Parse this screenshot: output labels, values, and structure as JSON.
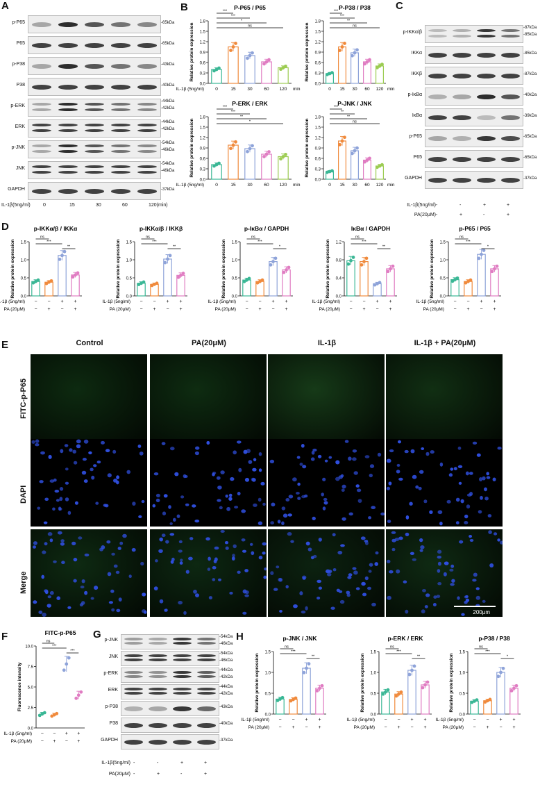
{
  "panels": {
    "A": "A",
    "B": "B",
    "C": "C",
    "D": "D",
    "E": "E",
    "F": "F",
    "G": "G",
    "H": "H"
  },
  "A": {
    "rows": [
      {
        "name": "p-P65",
        "kda": [
          "-65kDa"
        ]
      },
      {
        "name": "P65",
        "kda": [
          "-65kDa"
        ]
      },
      {
        "name": "p-P38",
        "kda": [
          "-43kDa"
        ]
      },
      {
        "name": "P38",
        "kda": [
          "-40kDa"
        ]
      },
      {
        "name": "p-ERK",
        "kda": [
          "-44kDa",
          "-42kDa"
        ]
      },
      {
        "name": "ERK",
        "kda": [
          "-44kDa",
          "-42kDa"
        ]
      },
      {
        "name": "p-JNK",
        "kda": [
          "-54kDa",
          "-46kDa"
        ]
      },
      {
        "name": "JNK",
        "kda": [
          "-54kDa",
          "-46kDa"
        ]
      },
      {
        "name": "GAPDH",
        "kda": [
          "-37kDa"
        ]
      }
    ],
    "treatment_label": "IL-1β(5ng/ml)",
    "times": [
      "0",
      "15",
      "30",
      "60",
      "120(min)"
    ]
  },
  "C": {
    "rows": [
      {
        "name": "p-IKKα/β",
        "kda": [
          "-87kDa",
          "-85kDa"
        ]
      },
      {
        "name": "IKKα",
        "kda": [
          "-85kDa"
        ]
      },
      {
        "name": "IKKβ",
        "kda": [
          "-87kDa"
        ]
      },
      {
        "name": "p-IκBα",
        "kda": [
          "-40kDa"
        ]
      },
      {
        "name": "IκBα",
        "kda": [
          "-39kDa"
        ]
      },
      {
        "name": "p-P65",
        "kda": [
          "-65kDa"
        ]
      },
      {
        "name": "P65",
        "kda": [
          "-65kDa"
        ]
      },
      {
        "name": "GAPDH",
        "kda": [
          "-37kDa"
        ]
      }
    ],
    "treat": [
      {
        "label": "IL-1β(5ng/ml)",
        "signs": [
          "-",
          "-",
          "+",
          "+"
        ]
      },
      {
        "label": "PA(20μM)",
        "signs": [
          "-",
          "+",
          "-",
          "+"
        ]
      }
    ]
  },
  "G": {
    "rows": [
      {
        "name": "p-JNK",
        "kda": [
          "-54kDa",
          "-46kDa"
        ]
      },
      {
        "name": "JNK",
        "kda": [
          "-54kDa",
          "-46kDa"
        ]
      },
      {
        "name": "p-ERK",
        "kda": [
          "-44kDa",
          "-42kDa"
        ]
      },
      {
        "name": "ERK",
        "kda": [
          "-44kDa",
          "-42kDa"
        ]
      },
      {
        "name": "p-P38",
        "kda": [
          "-43kDa"
        ]
      },
      {
        "name": "P38",
        "kda": [
          "-40kDa"
        ]
      },
      {
        "name": "GAPDH",
        "kda": [
          "-37kDa"
        ]
      }
    ],
    "treat": [
      {
        "label": "IL-1β(5ng/ml)",
        "signs": [
          "-",
          "-",
          "+",
          "+"
        ]
      },
      {
        "label": "PA(20μM)",
        "signs": [
          "-",
          "+",
          "-",
          "+"
        ]
      }
    ]
  },
  "E": {
    "columns": [
      "Control",
      "PA(20μM)",
      "IL-1β",
      "IL-1β + PA(20μM)"
    ],
    "rows": [
      "FITC-p-P65",
      "DAPI",
      "Merge"
    ],
    "scale_bar": "200μm"
  },
  "chart_data": [
    {
      "id": "B1",
      "type": "bar",
      "title": "P-P65 / P65",
      "ylabel": "Relative protein expression",
      "xlabel_prefix": "IL-1β (5ng/ml)",
      "categories": [
        "0",
        "15",
        "30",
        "60",
        "120"
      ],
      "x_unit": "min",
      "values": [
        0.4,
        1.05,
        0.8,
        0.62,
        0.45
      ],
      "ylim": [
        0,
        1.8
      ],
      "yticks": [
        "0.0",
        "0.3",
        "0.6",
        "0.9",
        "1.2",
        "1.5",
        "1.8"
      ],
      "colors": [
        "#3ab795",
        "#f08a3c",
        "#8ea3d9",
        "#e07cc2",
        "#9ccc52"
      ],
      "sig": [
        {
          "from": 0,
          "to": 1,
          "text": "***"
        },
        {
          "from": 0,
          "to": 2,
          "text": "***"
        },
        {
          "from": 0,
          "to": 3,
          "text": "*"
        },
        {
          "from": 0,
          "to": 4,
          "text": "ns"
        }
      ]
    },
    {
      "id": "B2",
      "type": "bar",
      "title": "P-P38 / P38",
      "ylabel": "Relative protein expression",
      "xlabel_prefix": "",
      "categories": [
        "0",
        "15",
        "30",
        "60",
        "120"
      ],
      "x_unit": "min",
      "values": [
        0.28,
        1.05,
        0.88,
        0.62,
        0.5
      ],
      "ylim": [
        0,
        1.8
      ],
      "yticks": [
        "0.0",
        "0.3",
        "0.6",
        "0.9",
        "1.2",
        "1.5",
        "1.8"
      ],
      "colors": [
        "#3ab795",
        "#f08a3c",
        "#8ea3d9",
        "#e07cc2",
        "#9ccc52"
      ],
      "sig": [
        {
          "from": 0,
          "to": 1,
          "text": "***"
        },
        {
          "from": 0,
          "to": 2,
          "text": "***"
        },
        {
          "from": 0,
          "to": 3,
          "text": "**"
        },
        {
          "from": 0,
          "to": 4,
          "text": "ns"
        }
      ]
    },
    {
      "id": "B3",
      "type": "bar",
      "title": "P-ERK / ERK",
      "ylabel": "Relative protein expression",
      "xlabel_prefix": "IL-1β (5ng/ml)",
      "categories": [
        "0",
        "15",
        "30",
        "60",
        "120"
      ],
      "x_unit": "min",
      "values": [
        0.42,
        0.98,
        0.88,
        0.72,
        0.65
      ],
      "ylim": [
        0,
        1.8
      ],
      "yticks": [
        "0.0",
        "0.3",
        "0.6",
        "0.9",
        "1.2",
        "1.5",
        "1.8"
      ],
      "colors": [
        "#3ab795",
        "#f08a3c",
        "#8ea3d9",
        "#e07cc2",
        "#9ccc52"
      ],
      "sig": [
        {
          "from": 0,
          "to": 1,
          "text": "***"
        },
        {
          "from": 0,
          "to": 2,
          "text": "***"
        },
        {
          "from": 0,
          "to": 3,
          "text": "**"
        },
        {
          "from": 0,
          "to": 4,
          "text": "*"
        }
      ]
    },
    {
      "id": "B4",
      "type": "bar",
      "title": "P-JNK / JNK",
      "ylabel": "Relative protein expression",
      "xlabel_prefix": "",
      "categories": [
        "0",
        "15",
        "30",
        "60",
        "120"
      ],
      "x_unit": "min",
      "values": [
        0.22,
        1.1,
        0.82,
        0.55,
        0.38
      ],
      "ylim": [
        0,
        1.8
      ],
      "yticks": [
        "0.0",
        "0.3",
        "0.6",
        "0.9",
        "1.2",
        "1.5",
        "1.8"
      ],
      "colors": [
        "#3ab795",
        "#f08a3c",
        "#8ea3d9",
        "#e07cc2",
        "#9ccc52"
      ],
      "sig": [
        {
          "from": 0,
          "to": 1,
          "text": "***"
        },
        {
          "from": 0,
          "to": 2,
          "text": "**"
        },
        {
          "from": 0,
          "to": 3,
          "text": "**"
        },
        {
          "from": 0,
          "to": 4,
          "text": "ns"
        }
      ]
    },
    {
      "id": "D1",
      "type": "bar",
      "title": "p-IKKα/β / IKKα",
      "ylabel": "Relative protein expression",
      "values": [
        0.4,
        0.38,
        1.12,
        0.58
      ],
      "ylim": [
        0,
        1.5
      ],
      "yticks": [
        "0.0",
        "0.5",
        "1.0",
        "1.5"
      ],
      "colors": [
        "#3ab795",
        "#f08a3c",
        "#8ea3d9",
        "#e07cc2"
      ],
      "sig": [
        {
          "from": 0,
          "to": 1,
          "text": "ns"
        },
        {
          "from": 0,
          "to": 2,
          "text": "***"
        },
        {
          "from": 2,
          "to": 3,
          "text": "**"
        }
      ],
      "treat": [
        {
          "label": "IL-1β (5ng/ml)",
          "signs": [
            "−",
            "−",
            "+",
            "+"
          ]
        },
        {
          "label": "PA (20μM)",
          "signs": [
            "−",
            "+",
            "−",
            "+"
          ]
        }
      ]
    },
    {
      "id": "D2",
      "type": "bar",
      "title": "p-IKKα/β / IKKβ",
      "ylabel": "Relative protein expression",
      "values": [
        0.35,
        0.32,
        1.02,
        0.57
      ],
      "ylim": [
        0,
        1.5
      ],
      "yticks": [
        "0.0",
        "0.5",
        "1.0",
        "1.5"
      ],
      "colors": [
        "#3ab795",
        "#f08a3c",
        "#8ea3d9",
        "#e07cc2"
      ],
      "sig": [
        {
          "from": 0,
          "to": 1,
          "text": "ns"
        },
        {
          "from": 0,
          "to": 2,
          "text": "***"
        },
        {
          "from": 2,
          "to": 3,
          "text": "**"
        }
      ],
      "treat": [
        {
          "label": "IL-1β (5ng/ml)",
          "signs": [
            "−",
            "−",
            "+",
            "+"
          ]
        },
        {
          "label": "PA (20μM)",
          "signs": [
            "−",
            "+",
            "−",
            "+"
          ]
        }
      ]
    },
    {
      "id": "D3",
      "type": "bar",
      "title": "p-IκBα / GAPDH",
      "ylabel": "Relative protein expression",
      "values": [
        0.44,
        0.4,
        0.95,
        0.72
      ],
      "ylim": [
        0,
        1.5
      ],
      "yticks": [
        "0.0",
        "0.5",
        "1.0",
        "1.5"
      ],
      "colors": [
        "#3ab795",
        "#f08a3c",
        "#8ea3d9",
        "#e07cc2"
      ],
      "sig": [
        {
          "from": 0,
          "to": 1,
          "text": "ns"
        },
        {
          "from": 0,
          "to": 2,
          "text": "***"
        },
        {
          "from": 2,
          "to": 3,
          "text": "*"
        }
      ],
      "treat": [
        {
          "label": "IL-1β (5ng/ml)",
          "signs": [
            "−",
            "−",
            "+",
            "+"
          ]
        },
        {
          "label": "PA (20μM)",
          "signs": [
            "−",
            "+",
            "−",
            "+"
          ]
        }
      ]
    },
    {
      "id": "D4",
      "type": "bar",
      "title": "IκBα / GAPDH",
      "ylabel": "Relative protein expression",
      "values": [
        0.78,
        0.76,
        0.27,
        0.6
      ],
      "ylim": [
        0,
        1.2
      ],
      "yticks": [
        "0.0",
        "0.4",
        "0.8",
        "1.2"
      ],
      "colors": [
        "#3ab795",
        "#f08a3c",
        "#8ea3d9",
        "#e07cc2"
      ],
      "sig": [
        {
          "from": 0,
          "to": 1,
          "text": "ns"
        },
        {
          "from": 0,
          "to": 2,
          "text": "***"
        },
        {
          "from": 2,
          "to": 3,
          "text": "**"
        }
      ],
      "treat": [
        {
          "label": "IL-1β (5ng/ml)",
          "signs": [
            "−",
            "−",
            "+",
            "+"
          ]
        },
        {
          "label": "PA (20μM)",
          "signs": [
            "−",
            "+",
            "−",
            "+"
          ]
        }
      ]
    },
    {
      "id": "D5",
      "type": "bar",
      "title": "p-P65 / P65",
      "ylabel": "Relative protein expression",
      "values": [
        0.45,
        0.4,
        1.15,
        0.75
      ],
      "ylim": [
        0,
        1.5
      ],
      "yticks": [
        "0.0",
        "0.5",
        "1.0",
        "1.5"
      ],
      "colors": [
        "#3ab795",
        "#f08a3c",
        "#8ea3d9",
        "#e07cc2"
      ],
      "sig": [
        {
          "from": 0,
          "to": 1,
          "text": "ns"
        },
        {
          "from": 0,
          "to": 2,
          "text": "***"
        },
        {
          "from": 2,
          "to": 3,
          "text": "*"
        }
      ],
      "treat": [
        {
          "label": "IL-1β (5ng/ml)",
          "signs": [
            "−",
            "−",
            "+",
            "+"
          ]
        },
        {
          "label": "PA (20μM)",
          "signs": [
            "−",
            "+",
            "−",
            "+"
          ]
        }
      ]
    },
    {
      "id": "F",
      "type": "scatter",
      "title": "FITC-p-P65",
      "ylabel": "Fluorescence intensity",
      "values": [
        1.7,
        1.6,
        7.8,
        4.0
      ],
      "ylim": [
        0,
        10
      ],
      "yticks": [
        "0.0",
        "2.5",
        "5.0",
        "7.5",
        "10.0"
      ],
      "colors": [
        "#3ab795",
        "#f08a3c",
        "#8ea3d9",
        "#e07cc2"
      ],
      "sig": [
        {
          "from": 0,
          "to": 1,
          "text": "ns"
        },
        {
          "from": 0,
          "to": 2,
          "text": "***"
        },
        {
          "from": 2,
          "to": 3,
          "text": "***"
        }
      ],
      "treat": [
        {
          "label": "IL-1β (5ng/ml)",
          "signs": [
            "−",
            "−",
            "+",
            "+"
          ]
        },
        {
          "label": "PA (20μM)",
          "signs": [
            "−",
            "+",
            "−",
            "+"
          ]
        }
      ]
    },
    {
      "id": "H1",
      "type": "bar",
      "title": "p-JNK / JNK",
      "ylabel": "Relative protein expression",
      "values": [
        0.36,
        0.35,
        1.1,
        0.62
      ],
      "ylim": [
        0,
        1.5
      ],
      "yticks": [
        "0.0",
        "0.5",
        "1.0",
        "1.5"
      ],
      "colors": [
        "#3ab795",
        "#f08a3c",
        "#8ea3d9",
        "#e07cc2"
      ],
      "sig": [
        {
          "from": 0,
          "to": 1,
          "text": "ns"
        },
        {
          "from": 0,
          "to": 2,
          "text": "***"
        },
        {
          "from": 2,
          "to": 3,
          "text": "**"
        }
      ],
      "treat": [
        {
          "label": "IL-1β (5ng/ml)",
          "signs": [
            "−",
            "−",
            "+",
            "+"
          ]
        },
        {
          "label": "PA (20μM)",
          "signs": [
            "−",
            "+",
            "−",
            "+"
          ]
        }
      ]
    },
    {
      "id": "H2",
      "type": "bar",
      "title": "p-ERK / ERK",
      "ylabel": "Relative protein expression",
      "values": [
        0.53,
        0.48,
        1.05,
        0.7
      ],
      "ylim": [
        0,
        1.5
      ],
      "yticks": [
        "0.0",
        "0.5",
        "1.0",
        "1.5"
      ],
      "colors": [
        "#3ab795",
        "#f08a3c",
        "#8ea3d9",
        "#e07cc2"
      ],
      "sig": [
        {
          "from": 0,
          "to": 1,
          "text": "ns"
        },
        {
          "from": 0,
          "to": 2,
          "text": "***"
        },
        {
          "from": 2,
          "to": 3,
          "text": "**"
        }
      ],
      "treat": [
        {
          "label": "IL-1β (5ng/ml)",
          "signs": [
            "−",
            "−",
            "+",
            "+"
          ]
        },
        {
          "label": "PA (20μM)",
          "signs": [
            "−",
            "+",
            "−",
            "+"
          ]
        }
      ]
    },
    {
      "id": "H3",
      "type": "bar",
      "title": "p-P38 / P38",
      "ylabel": "Relative protein expression",
      "values": [
        0.31,
        0.32,
        1.0,
        0.62
      ],
      "ylim": [
        0,
        1.5
      ],
      "yticks": [
        "0.0",
        "0.5",
        "1.0",
        "1.5"
      ],
      "colors": [
        "#3ab795",
        "#f08a3c",
        "#8ea3d9",
        "#e07cc2"
      ],
      "sig": [
        {
          "from": 0,
          "to": 1,
          "text": "ns"
        },
        {
          "from": 0,
          "to": 2,
          "text": "***"
        },
        {
          "from": 2,
          "to": 3,
          "text": "*"
        }
      ],
      "treat": [
        {
          "label": "IL-1β (5ng/ml)",
          "signs": [
            "−",
            "−",
            "+",
            "+"
          ]
        },
        {
          "label": "PA (20μM)",
          "signs": [
            "−",
            "+",
            "−",
            "+"
          ]
        }
      ]
    }
  ]
}
